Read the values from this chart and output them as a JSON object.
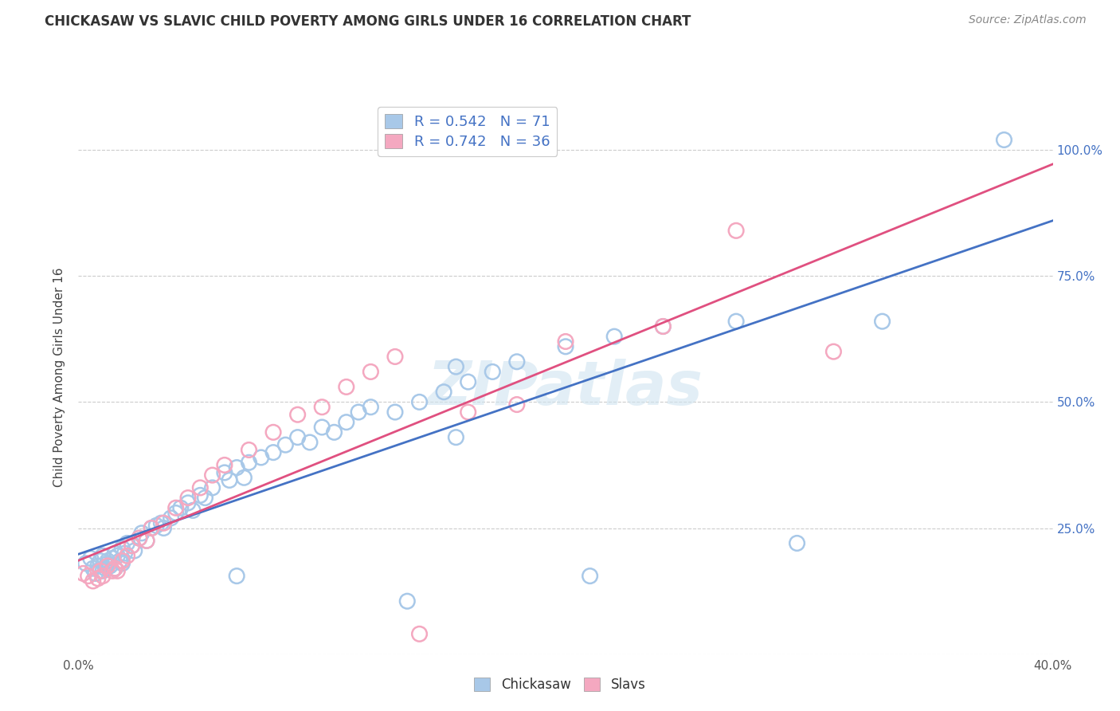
{
  "title": "CHICKASAW VS SLAVIC CHILD POVERTY AMONG GIRLS UNDER 16 CORRELATION CHART",
  "source": "Source: ZipAtlas.com",
  "ylabel": "Child Poverty Among Girls Under 16",
  "xmin": 0.0,
  "xmax": 0.4,
  "ymin": 0.0,
  "ymax": 1.1,
  "yticks": [
    0.0,
    0.25,
    0.5,
    0.75,
    1.0
  ],
  "ytick_labels": [
    "",
    "25.0%",
    "50.0%",
    "75.0%",
    "100.0%"
  ],
  "xticks": [
    0.0,
    0.05,
    0.1,
    0.15,
    0.2,
    0.25,
    0.3,
    0.35,
    0.4
  ],
  "xtick_labels": [
    "0.0%",
    "",
    "",
    "",
    "",
    "",
    "",
    "",
    "40.0%"
  ],
  "blue_color": "#a8c8e8",
  "pink_color": "#f4a8c0",
  "blue_line_color": "#4472c4",
  "pink_line_color": "#e05080",
  "blue_R": 0.542,
  "blue_N": 71,
  "pink_R": 0.742,
  "pink_N": 36,
  "watermark": "ZIPatlas",
  "legend_chickasaw": "Chickasaw",
  "legend_slavs": "Slavs",
  "blue_scatter_x": [
    0.003,
    0.005,
    0.006,
    0.007,
    0.008,
    0.009,
    0.01,
    0.01,
    0.011,
    0.012,
    0.012,
    0.013,
    0.014,
    0.015,
    0.015,
    0.016,
    0.017,
    0.018,
    0.018,
    0.019,
    0.02,
    0.022,
    0.023,
    0.025,
    0.026,
    0.028,
    0.03,
    0.032,
    0.034,
    0.035,
    0.038,
    0.04,
    0.042,
    0.045,
    0.047,
    0.05,
    0.052,
    0.055,
    0.06,
    0.062,
    0.065,
    0.068,
    0.07,
    0.075,
    0.08,
    0.085,
    0.09,
    0.095,
    0.1,
    0.105,
    0.11,
    0.115,
    0.12,
    0.13,
    0.14,
    0.15,
    0.16,
    0.17,
    0.18,
    0.2,
    0.22,
    0.24,
    0.155,
    0.27,
    0.295,
    0.155,
    0.21,
    0.33,
    0.38,
    0.135,
    0.065
  ],
  "blue_scatter_y": [
    0.18,
    0.19,
    0.17,
    0.16,
    0.175,
    0.185,
    0.195,
    0.165,
    0.17,
    0.18,
    0.185,
    0.175,
    0.19,
    0.2,
    0.17,
    0.195,
    0.185,
    0.21,
    0.18,
    0.2,
    0.22,
    0.215,
    0.205,
    0.23,
    0.24,
    0.225,
    0.25,
    0.255,
    0.26,
    0.25,
    0.27,
    0.28,
    0.29,
    0.3,
    0.285,
    0.315,
    0.31,
    0.33,
    0.36,
    0.345,
    0.37,
    0.35,
    0.38,
    0.39,
    0.4,
    0.415,
    0.43,
    0.42,
    0.45,
    0.44,
    0.46,
    0.48,
    0.49,
    0.48,
    0.5,
    0.52,
    0.54,
    0.56,
    0.58,
    0.61,
    0.63,
    0.65,
    0.57,
    0.66,
    0.22,
    0.43,
    0.155,
    0.66,
    1.02,
    0.105,
    0.155
  ],
  "pink_scatter_x": [
    0.002,
    0.004,
    0.006,
    0.008,
    0.009,
    0.01,
    0.012,
    0.014,
    0.015,
    0.016,
    0.018,
    0.02,
    0.022,
    0.025,
    0.028,
    0.03,
    0.035,
    0.04,
    0.045,
    0.05,
    0.055,
    0.06,
    0.07,
    0.08,
    0.09,
    0.1,
    0.11,
    0.12,
    0.13,
    0.16,
    0.18,
    0.2,
    0.24,
    0.27,
    0.31,
    0.14
  ],
  "pink_scatter_y": [
    0.16,
    0.155,
    0.145,
    0.15,
    0.165,
    0.155,
    0.175,
    0.165,
    0.17,
    0.165,
    0.185,
    0.195,
    0.215,
    0.23,
    0.225,
    0.25,
    0.26,
    0.29,
    0.31,
    0.33,
    0.355,
    0.375,
    0.405,
    0.44,
    0.475,
    0.49,
    0.53,
    0.56,
    0.59,
    0.48,
    0.495,
    0.62,
    0.65,
    0.84,
    0.6,
    0.04
  ]
}
